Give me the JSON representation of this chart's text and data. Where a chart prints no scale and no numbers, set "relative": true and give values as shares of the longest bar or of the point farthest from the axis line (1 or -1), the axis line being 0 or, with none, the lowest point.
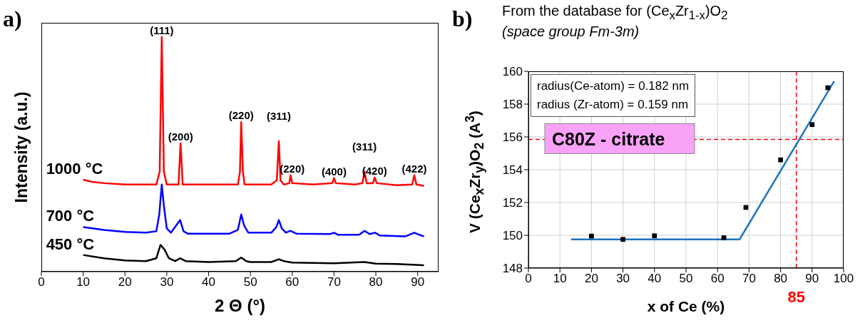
{
  "chart_data": [
    {
      "type": "line",
      "relative": true,
      "xlabel": "2 Θ (°)",
      "ylabel": "Intensity (a.u.)",
      "xlim": [
        0,
        95
      ],
      "xticks": [
        0,
        10,
        20,
        30,
        40,
        50,
        60,
        70,
        80,
        90
      ],
      "marker": "none",
      "line_style": "solid",
      "annotations": [
        "a)",
        {
          "text": "(111)",
          "x": 28.8,
          "y": 1.0
        },
        {
          "text": "(200)",
          "x": 33.3,
          "y": 0.547
        },
        {
          "text": "(220)",
          "x": 47.8,
          "y": 0.637
        },
        {
          "text": "(311)",
          "x": 56.8,
          "y": 0.556
        },
        {
          "text": "(220)",
          "x": 60,
          "y": 0.411
        },
        {
          "text": "(400)",
          "x": 70,
          "y": 0.399
        },
        {
          "text": "(311)",
          "x": 77.3,
          "y": 0.426
        },
        {
          "text": "(420)",
          "x": 79.7,
          "y": 0.401
        },
        {
          "text": "(422)",
          "x": 89.2,
          "y": 0.411
        }
      ],
      "series": [
        {
          "name": "1000 °C",
          "color": "#ff0000",
          "x": [
            10,
            12,
            15,
            20,
            25,
            27.5,
            28.3,
            28.8,
            29.3,
            30,
            32.8,
            33.3,
            33.8,
            40,
            47,
            47.5,
            47.8,
            48.2,
            48.6,
            55,
            56.3,
            56.8,
            57.2,
            58,
            59.3,
            59.6,
            60,
            65,
            69.6,
            70,
            70.4,
            75,
            76.8,
            77.3,
            77.8,
            79.3,
            79.7,
            80.2,
            85,
            88.7,
            89.2,
            89.7,
            91.5
          ],
          "values": [
            0.392,
            0.383,
            0.377,
            0.371,
            0.371,
            0.371,
            0.426,
            1.0,
            0.426,
            0.371,
            0.371,
            0.547,
            0.371,
            0.371,
            0.371,
            0.426,
            0.637,
            0.426,
            0.371,
            0.371,
            0.389,
            0.556,
            0.389,
            0.371,
            0.377,
            0.411,
            0.377,
            0.371,
            0.377,
            0.399,
            0.377,
            0.371,
            0.377,
            0.426,
            0.377,
            0.377,
            0.401,
            0.377,
            0.368,
            0.371,
            0.411,
            0.371,
            0.365
          ]
        },
        {
          "name": "700 °C",
          "color": "#0000ff",
          "x": [
            10,
            15,
            20,
            25,
            27.5,
            28.2,
            28.8,
            29.3,
            30,
            31,
            33.2,
            34,
            35,
            45,
            47,
            47.8,
            48.5,
            49.5,
            55,
            56.2,
            56.8,
            57.5,
            58.5,
            59.5,
            61,
            69,
            70,
            71,
            76,
            77.3,
            78.5,
            79.8,
            81,
            87,
            89.2,
            90,
            91.5
          ],
          "values": [
            0.19,
            0.178,
            0.169,
            0.166,
            0.172,
            0.244,
            0.371,
            0.281,
            0.184,
            0.166,
            0.22,
            0.172,
            0.162,
            0.162,
            0.178,
            0.244,
            0.196,
            0.166,
            0.166,
            0.19,
            0.22,
            0.184,
            0.166,
            0.174,
            0.162,
            0.16,
            0.166,
            0.157,
            0.157,
            0.174,
            0.16,
            0.166,
            0.154,
            0.15,
            0.166,
            0.16,
            0.15
          ]
        },
        {
          "name": "450 °C",
          "color": "#000000",
          "x": [
            10,
            15,
            20,
            25,
            27.5,
            28.5,
            29.5,
            30.5,
            32,
            33.2,
            34.5,
            40,
            46.5,
            47.8,
            49,
            50,
            55,
            56.8,
            58,
            60,
            70,
            77.3,
            80,
            85,
            91.5
          ],
          "values": [
            0.071,
            0.057,
            0.048,
            0.045,
            0.057,
            0.114,
            0.093,
            0.057,
            0.045,
            0.057,
            0.045,
            0.041,
            0.045,
            0.06,
            0.045,
            0.041,
            0.041,
            0.053,
            0.045,
            0.039,
            0.036,
            0.041,
            0.034,
            0.033,
            0.027
          ]
        }
      ]
    },
    {
      "type": "scatter",
      "title": "From the database for (Ce$_{x}$Zr$_{1-x}$)O$_{2}$",
      "subtitle": "(space group Fm-3m)",
      "xlabel": "x of Ce (%)",
      "ylabel": "V (Ce$_{x}$Zr$_{y}$)O$_{2}$ (A$^{3}$)",
      "xlim": [
        0,
        100
      ],
      "xticks": [
        0,
        10,
        20,
        30,
        40,
        50,
        60,
        70,
        80,
        90,
        100
      ],
      "ylim": [
        148,
        160
      ],
      "yticks": [
        148,
        150,
        152,
        154,
        156,
        158,
        160
      ],
      "grid": true,
      "marker": "square",
      "annotations": [
        "b)",
        "radius(Ce-atom) = 0.182 nm",
        "radius (Zr-atom) = 0.159 nm"
      ],
      "ref_lines": [
        {
          "axis": "y",
          "value": 155.85,
          "label": "C80Z - citrate",
          "color": "#ff0000",
          "line_style": "dashed"
        },
        {
          "axis": "x",
          "value": 85,
          "label": "85",
          "color": "#ff0000",
          "line_style": "dashed"
        }
      ],
      "series": [
        {
          "color": "#000000",
          "x": [
            20,
            30,
            40,
            62,
            69,
            80,
            90,
            95
          ],
          "values": [
            149.95,
            149.75,
            149.97,
            149.85,
            151.7,
            154.6,
            156.75,
            159.0
          ]
        },
        {
          "type": "line",
          "marker": "none",
          "color": "#1f74c0",
          "x": [
            13.5,
            67,
            97
          ],
          "values": [
            149.75,
            149.75,
            159.4
          ]
        }
      ]
    }
  ]
}
